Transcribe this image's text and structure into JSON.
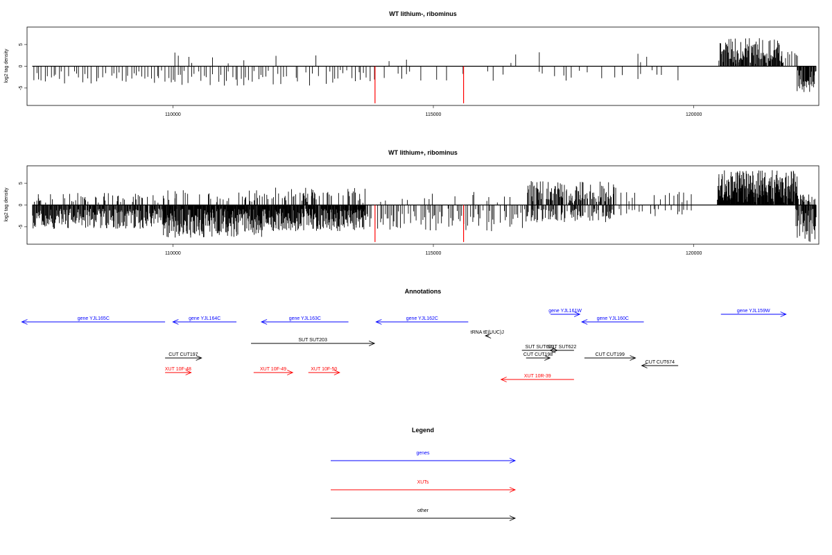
{
  "chart_data": [
    {
      "type": "bar",
      "title": "WT lithium-, ribominus",
      "ylabel": "log2 tag density",
      "xlabel": "",
      "xlim": [
        107200,
        122400
      ],
      "ylim": [
        -9,
        9
      ],
      "xticks": [
        110000,
        115000,
        120000
      ],
      "xtick_labels": [
        "110000",
        "115000",
        "120000"
      ],
      "yticks": [
        5,
        0,
        -5
      ],
      "ytick_labels": [
        "5",
        "0",
        "-5"
      ],
      "grid": false,
      "series": [
        {
          "color": "#ff0000",
          "x": [
            113880,
            115580
          ],
          "values": [
            -8.5,
            -8.5
          ]
        }
      ],
      "segments": [
        {
          "range": [
            107300,
            109850
          ],
          "spacing": 55,
          "neg_p": 0.9,
          "pos_p": 0.0,
          "neg_max": 4.0,
          "pos_max": 0
        },
        {
          "range": [
            109850,
            110400
          ],
          "spacing": 45,
          "neg_p": 0.85,
          "pos_p": 0.25,
          "neg_max": 4.5,
          "pos_max": 5.0
        },
        {
          "range": [
            110400,
            113700
          ],
          "spacing": 55,
          "neg_p": 0.85,
          "pos_p": 0.08,
          "neg_max": 4.5,
          "pos_max": 3.0
        },
        {
          "range": [
            113700,
            116000
          ],
          "spacing": 80,
          "neg_p": 0.45,
          "pos_p": 0.05,
          "neg_max": 3.5,
          "pos_max": 2.0
        },
        {
          "range": [
            116000,
            119700
          ],
          "spacing": 90,
          "neg_p": 0.45,
          "pos_p": 0.1,
          "neg_max": 3.5,
          "pos_max": 4.0
        },
        {
          "range": [
            120450,
            121700
          ],
          "spacing": 12,
          "neg_p": 0.0,
          "pos_p": 0.97,
          "neg_max": 0,
          "pos_max": 6.5
        },
        {
          "range": [
            121700,
            121980
          ],
          "spacing": 25,
          "neg_p": 0.0,
          "pos_p": 0.6,
          "neg_max": 0,
          "pos_max": 5.0
        },
        {
          "range": [
            121980,
            122350
          ],
          "spacing": 12,
          "neg_p": 0.97,
          "pos_p": 0.0,
          "neg_max": 6.3,
          "pos_max": 0
        }
      ]
    },
    {
      "type": "bar",
      "title": "WT lithium+, ribominus",
      "ylabel": "log2 tag density",
      "xlabel": "",
      "xlim": [
        107200,
        122400
      ],
      "ylim": [
        -9,
        9
      ],
      "xticks": [
        110000,
        115000,
        120000
      ],
      "xtick_labels": [
        "110000",
        "115000",
        "120000"
      ],
      "yticks": [
        5,
        0,
        -5
      ],
      "ytick_labels": [
        "5",
        "0",
        "-5"
      ],
      "grid": false,
      "series": [
        {
          "color": "#ff0000",
          "x": [
            113880,
            115580
          ],
          "values": [
            -8.5,
            -8.5
          ]
        }
      ],
      "segments": [
        {
          "range": [
            107300,
            109800
          ],
          "spacing": 12,
          "neg_p": 0.98,
          "pos_p": 0.25,
          "neg_max": 5.5,
          "pos_max": 2.8
        },
        {
          "range": [
            109800,
            111700
          ],
          "spacing": 9,
          "neg_p": 0.98,
          "pos_p": 0.15,
          "neg_max": 7.5,
          "pos_max": 3.5
        },
        {
          "range": [
            111700,
            113700
          ],
          "spacing": 9,
          "neg_p": 0.98,
          "pos_p": 0.2,
          "neg_max": 6.0,
          "pos_max": 4.0
        },
        {
          "range": [
            113700,
            116800
          ],
          "spacing": 30,
          "neg_p": 0.75,
          "pos_p": 0.15,
          "neg_max": 6.0,
          "pos_max": 3.0
        },
        {
          "range": [
            116800,
            118500
          ],
          "spacing": 12,
          "neg_p": 0.6,
          "pos_p": 0.7,
          "neg_max": 4.0,
          "pos_max": 5.5
        },
        {
          "range": [
            118500,
            120000
          ],
          "spacing": 50,
          "neg_p": 0.5,
          "pos_p": 0.4,
          "neg_max": 3.0,
          "pos_max": 3.0
        },
        {
          "range": [
            120450,
            122000
          ],
          "spacing": 8,
          "neg_p": 0.0,
          "pos_p": 0.98,
          "neg_max": 0,
          "pos_max": 8.0
        },
        {
          "range": [
            121950,
            122350
          ],
          "spacing": 10,
          "neg_p": 0.97,
          "pos_p": 0.4,
          "neg_max": 8.5,
          "pos_max": 2.5
        }
      ]
    }
  ],
  "annotations": {
    "title": "Annotations",
    "xlim": [
      107200,
      122400
    ],
    "features": [
      {
        "label": "gene YJL165C",
        "start": 107100,
        "end": 109850,
        "strand": "-",
        "row": 2,
        "color": "#0000ff"
      },
      {
        "label": "gene YJL164C",
        "start": 110000,
        "end": 111220,
        "strand": "-",
        "row": 2,
        "color": "#0000ff"
      },
      {
        "label": "gene YJL163C",
        "start": 111700,
        "end": 113370,
        "strand": "-",
        "row": 2,
        "color": "#0000ff"
      },
      {
        "label": "gene YJL162C",
        "start": 113900,
        "end": 115670,
        "strand": "-",
        "row": 2,
        "color": "#0000ff"
      },
      {
        "label": "gene YJL161W",
        "start": 117250,
        "end": 117810,
        "strand": "+",
        "row": 1,
        "color": "#0000ff"
      },
      {
        "label": "gene YJL160C",
        "start": 117850,
        "end": 119040,
        "strand": "-",
        "row": 2,
        "color": "#0000ff"
      },
      {
        "label": "gene YJL159W",
        "start": 120520,
        "end": 121770,
        "strand": "+",
        "row": 1,
        "color": "#0000ff"
      },
      {
        "label": "tRNA tE(UUC)J",
        "start": 116000,
        "end": 116070,
        "strand": "-",
        "row": 3,
        "color": "#000000"
      },
      {
        "label": "SUT SUT203",
        "start": 111500,
        "end": 113870,
        "strand": "+",
        "row": 4,
        "color": "#000000"
      },
      {
        "label": "SUT SUT621",
        "start": 116700,
        "end": 117380,
        "strand": "+",
        "row": 5,
        "color": "#000000"
      },
      {
        "label": "SUT SUT622",
        "start": 117240,
        "end": 117700,
        "strand": "-",
        "row": 5,
        "color": "#000000"
      },
      {
        "label": "CUT CUT197",
        "start": 109850,
        "end": 110550,
        "strand": "+",
        "row": 6,
        "color": "#000000"
      },
      {
        "label": "CUT CUT198",
        "start": 116780,
        "end": 117240,
        "strand": "+",
        "row": 6,
        "color": "#000000"
      },
      {
        "label": "CUT CUT199",
        "start": 117900,
        "end": 118880,
        "strand": "+",
        "row": 6,
        "color": "#000000"
      },
      {
        "label": "CUT CUT674",
        "start": 119000,
        "end": 119700,
        "strand": "-",
        "row": 7,
        "color": "#000000"
      },
      {
        "label": "XUT 10F-48",
        "start": 109850,
        "end": 110350,
        "strand": "+",
        "row": 8,
        "color": "#ff0000"
      },
      {
        "label": "XUT 10F-49",
        "start": 111550,
        "end": 112300,
        "strand": "+",
        "row": 8,
        "color": "#ff0000"
      },
      {
        "label": "XUT 10F-50",
        "start": 112600,
        "end": 113200,
        "strand": "+",
        "row": 8,
        "color": "#ff0000"
      },
      {
        "label": "XUT 10R-39",
        "start": 116300,
        "end": 117700,
        "strand": "-",
        "row": 9,
        "color": "#ff0000"
      }
    ]
  },
  "legend": {
    "title": "Legend",
    "items": [
      {
        "label": "genes",
        "color": "#0000ff"
      },
      {
        "label": "XUTs",
        "color": "#ff0000"
      },
      {
        "label": "other",
        "color": "#000000"
      }
    ]
  },
  "colors": {
    "bars": "#000000",
    "highlight": "#ff0000",
    "genes": "#0000ff",
    "xuts": "#ff0000",
    "other": "#000000"
  }
}
